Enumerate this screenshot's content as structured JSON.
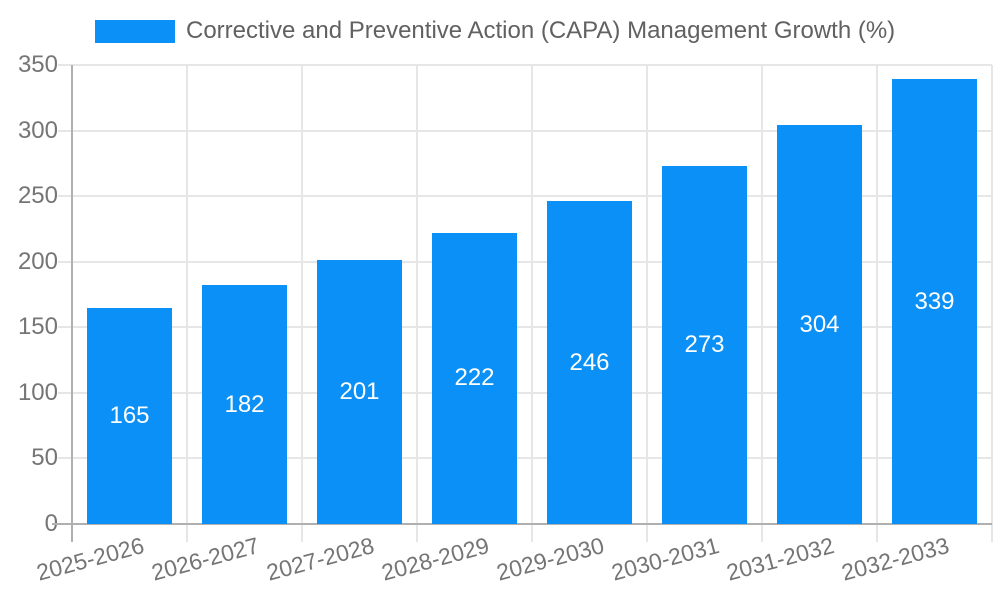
{
  "chart_data": {
    "type": "bar",
    "title": "Corrective and Preventive Action (CAPA) Management Growth (%)",
    "categories": [
      "2025-2026",
      "2026-2027",
      "2027-2028",
      "2028-2029",
      "2029-2030",
      "2030-2031",
      "2031-2032",
      "2032-2033"
    ],
    "values": [
      165,
      182,
      201,
      222,
      246,
      273,
      304,
      339
    ],
    "xlabel": "",
    "ylabel": "",
    "ylim": [
      0,
      350
    ],
    "y_ticks": [
      0,
      50,
      100,
      150,
      200,
      250,
      300,
      350
    ],
    "grid": true,
    "legend_position": "top-left",
    "bar_labels_inside": true,
    "colors": {
      "bar": "#0A90F6",
      "bar_label": "#FFFFFF",
      "grid_line": "#E6E6E6",
      "axis_line": "#B0B0B0",
      "tick_label": "#757575",
      "legend_text": "#616161",
      "background": "#FFFFFF"
    }
  }
}
